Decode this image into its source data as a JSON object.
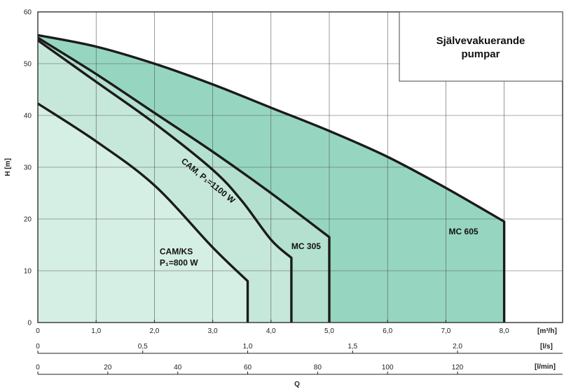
{
  "chart_data": {
    "type": "area",
    "title_lines": [
      "Självevakuerande",
      "pumpar"
    ],
    "ylabel": "H [m]",
    "xlabel": "Q",
    "ylim": [
      0,
      60
    ],
    "y_ticks": [
      "0",
      "10",
      "20",
      "30",
      "40",
      "50",
      "60"
    ],
    "xlim_m3h": [
      0,
      9
    ],
    "grid": true,
    "x_axes": [
      {
        "unit": "[m³/h]",
        "scale_to_m3h": 1,
        "ticks": [
          {
            "v": 0,
            "label": "0"
          },
          {
            "v": 1,
            "label": "1,0"
          },
          {
            "v": 2,
            "label": "2,0"
          },
          {
            "v": 3,
            "label": "3,0"
          },
          {
            "v": 4,
            "label": "4,0"
          },
          {
            "v": 5,
            "label": "5,0"
          },
          {
            "v": 6,
            "label": "6,0"
          },
          {
            "v": 7,
            "label": "7,0"
          },
          {
            "v": 8,
            "label": "8,0"
          }
        ]
      },
      {
        "unit": "[l/s]",
        "scale_to_m3h": 3.6,
        "ticks": [
          {
            "v": 0,
            "label": "0"
          },
          {
            "v": 0.5,
            "label": "0,5"
          },
          {
            "v": 1.0,
            "label": "1,0"
          },
          {
            "v": 1.5,
            "label": "1,5"
          },
          {
            "v": 2.0,
            "label": "2,0"
          }
        ]
      },
      {
        "unit": "[l/min]",
        "scale_to_m3h": 0.06,
        "ticks": [
          {
            "v": 0,
            "label": "0"
          },
          {
            "v": 20,
            "label": "20"
          },
          {
            "v": 40,
            "label": "40"
          },
          {
            "v": 60,
            "label": "60"
          },
          {
            "v": 80,
            "label": "80"
          },
          {
            "v": 100,
            "label": "100"
          },
          {
            "v": 120,
            "label": "120"
          }
        ]
      }
    ],
    "series": [
      {
        "name": "MC 605",
        "fill": "#96d6c0",
        "label_at": [
          7.05,
          17
        ],
        "points": [
          [
            0,
            55.5
          ],
          [
            1,
            53.3
          ],
          [
            2,
            50.0
          ],
          [
            3,
            46.0
          ],
          [
            4,
            41.5
          ],
          [
            5,
            37.0
          ],
          [
            6,
            32.0
          ],
          [
            7,
            26.0
          ],
          [
            8,
            19.5
          ],
          [
            8,
            0
          ]
        ]
      },
      {
        "name": "MC 305",
        "fill": "#b4e0cf",
        "label_at": [
          4.35,
          14.2
        ],
        "points": [
          [
            0,
            55
          ],
          [
            1,
            48
          ],
          [
            2,
            40.5
          ],
          [
            3,
            33
          ],
          [
            4,
            25
          ],
          [
            5,
            16.5
          ],
          [
            5,
            0
          ]
        ]
      },
      {
        "name": "CAM, P₁=1100 W",
        "fill": "#c6e8da",
        "label_at": [
          2.45,
          31
        ],
        "angle": 39,
        "points": [
          [
            0,
            54.5
          ],
          [
            1,
            46.5
          ],
          [
            2,
            38.5
          ],
          [
            3,
            29.5
          ],
          [
            3.5,
            23.5
          ],
          [
            4.0,
            16
          ],
          [
            4.35,
            12.5
          ],
          [
            4.35,
            0
          ]
        ]
      },
      {
        "name": "CAM/KS",
        "subname": "P₁=800 W",
        "fill": "#d6efe5",
        "label_at": [
          2.09,
          13.2
        ],
        "points": [
          [
            0,
            42.3
          ],
          [
            1,
            35
          ],
          [
            2,
            26.5
          ],
          [
            3,
            14.5
          ],
          [
            3.6,
            8
          ],
          [
            3.6,
            0
          ]
        ]
      }
    ]
  }
}
